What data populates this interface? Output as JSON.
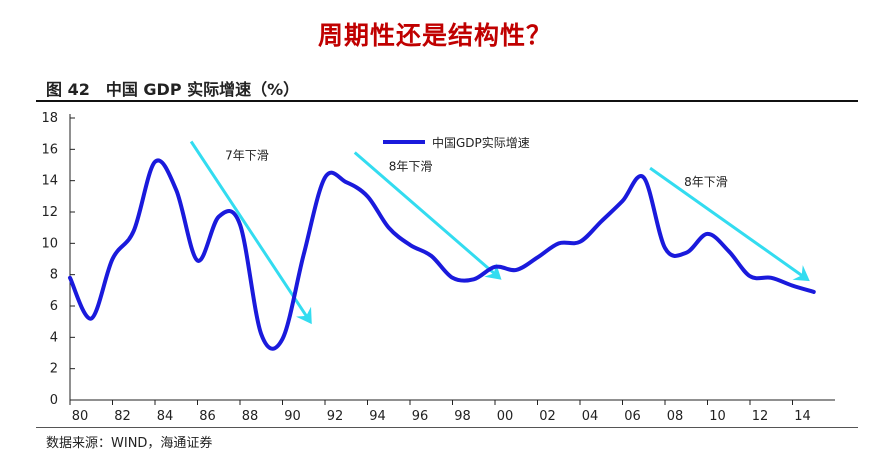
{
  "header": {
    "title": "周期性还是结构性？",
    "caption": "图 42　中国 GDP 实际增速（%）"
  },
  "source": "数据来源：WIND，海通证券",
  "colors": {
    "series": "#1a1adc",
    "arrow": "#33dcf0",
    "title": "#c00000"
  },
  "chart_data": {
    "type": "line",
    "title": "",
    "xlabel": "",
    "ylabel": "",
    "xlim": [
      1980,
      2016
    ],
    "ylim": [
      0,
      18
    ],
    "x_ticks": [
      "80",
      "82",
      "84",
      "86",
      "88",
      "90",
      "92",
      "94",
      "96",
      "98",
      "00",
      "02",
      "04",
      "06",
      "08",
      "10",
      "12",
      "14"
    ],
    "y_ticks": [
      "0",
      "2",
      "4",
      "6",
      "8",
      "10",
      "12",
      "14",
      "16",
      "18"
    ],
    "legend": {
      "position": "top-center",
      "entries": [
        "中国GDP实际增速"
      ]
    },
    "series": [
      {
        "name": "中国GDP实际增速",
        "x": [
          1980,
          1981,
          1982,
          1983,
          1984,
          1985,
          1986,
          1987,
          1988,
          1989,
          1990,
          1991,
          1992,
          1993,
          1994,
          1995,
          1996,
          1997,
          1998,
          1999,
          2000,
          2001,
          2002,
          2003,
          2004,
          2005,
          2006,
          2007,
          2008,
          2009,
          2010,
          2011,
          2012,
          2013,
          2014,
          2015
        ],
        "values": [
          7.8,
          5.2,
          9.0,
          10.8,
          15.2,
          13.4,
          8.9,
          11.7,
          11.2,
          4.2,
          3.9,
          9.3,
          14.2,
          13.9,
          13.0,
          11.0,
          9.9,
          9.2,
          7.8,
          7.7,
          8.5,
          8.3,
          9.1,
          10.0,
          10.1,
          11.4,
          12.7,
          14.2,
          9.7,
          9.4,
          10.6,
          9.5,
          7.9,
          7.8,
          7.3,
          6.9
        ]
      }
    ],
    "annotations": [
      {
        "text": "7年下滑",
        "from": [
          1985.7,
          16.5
        ],
        "to": [
          1991.3,
          5.0
        ]
      },
      {
        "text": "8年下滑",
        "from": [
          1993.4,
          15.8
        ],
        "to": [
          2000.2,
          7.8
        ]
      },
      {
        "text": "8年下滑",
        "from": [
          2007.3,
          14.8
        ],
        "to": [
          2014.7,
          7.7
        ]
      }
    ],
    "grid": false
  }
}
